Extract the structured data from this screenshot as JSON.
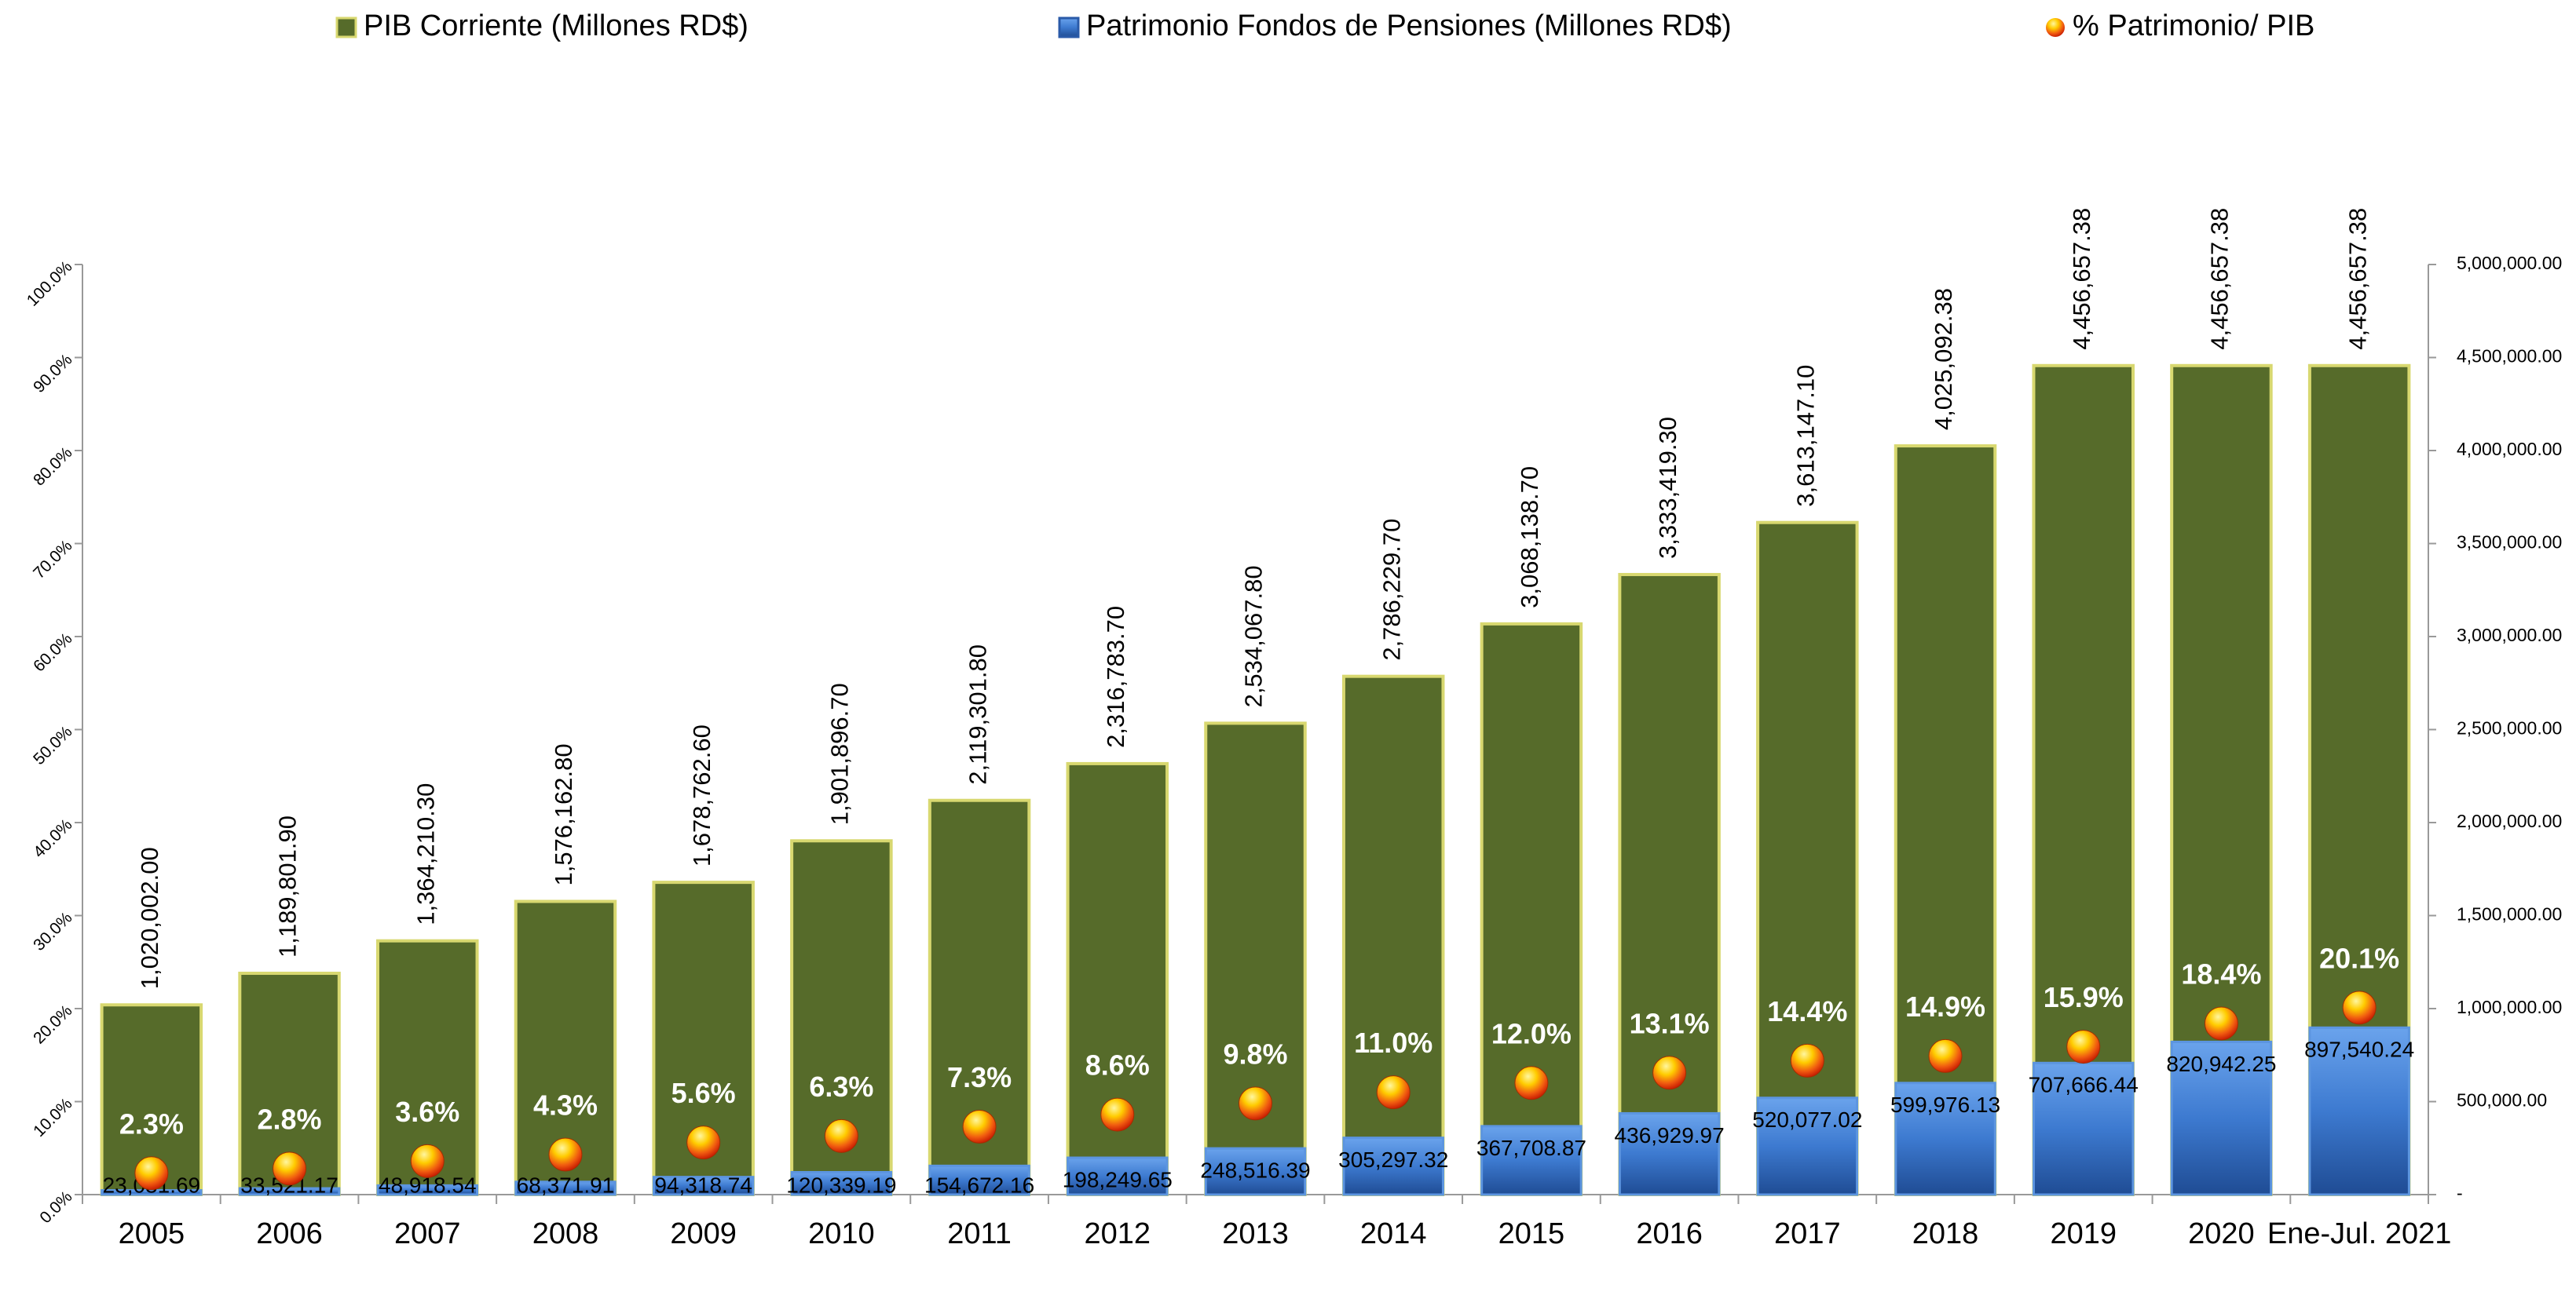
{
  "chart_data": {
    "type": "bar",
    "categories": [
      "2005",
      "2006",
      "2007",
      "2008",
      "2009",
      "2010",
      "2011",
      "2012",
      "2013",
      "2014",
      "2015",
      "2016",
      "2017",
      "2018",
      "2019",
      "2020",
      "Ene-Jul. 2021"
    ],
    "series": [
      {
        "name": "PIB Corriente (Millones RD$)",
        "type": "bar",
        "color": "#566b2a",
        "axis": "y2",
        "values": [
          1020002.0,
          1189801.9,
          1364210.3,
          1576162.8,
          1678762.6,
          1901896.7,
          2119301.8,
          2316783.7,
          2534067.8,
          2786229.7,
          3068138.7,
          3333419.3,
          3613147.1,
          4025092.38,
          4456657.38,
          4456657.38,
          4456657.38
        ],
        "value_labels": [
          "1,020,002.00",
          "1,189,801.90",
          "1,364,210.30",
          "1,576,162.80",
          "1,678,762.60",
          "1,901,896.70",
          "2,119,301.80",
          "2,316,783.70",
          "2,534,067.80",
          "2,786,229.70",
          "3,068,138.70",
          "3,333,419.30",
          "3,613,147.10",
          "4,025,092.38",
          "4,456,657.38",
          "4,456,657.38",
          "4,456,657.38"
        ]
      },
      {
        "name": "Patrimonio Fondos de Pensiones (Millones RD$)",
        "type": "bar",
        "color": "#3d7ad0",
        "axis": "y2",
        "values": [
          23031.69,
          33521.17,
          48918.54,
          68371.91,
          94318.74,
          120339.19,
          154672.16,
          198249.65,
          248516.39,
          305297.32,
          367708.87,
          436929.97,
          520077.02,
          599976.13,
          707666.44,
          820942.25,
          897540.24
        ],
        "value_labels": [
          "23,031.69",
          "33,521.17",
          "48,918.54",
          "68,371.91",
          "94,318.74",
          "120,339.19",
          "154,672.16",
          "198,249.65",
          "248,516.39",
          "305,297.32",
          "367,708.87",
          "436,929.97",
          "520,077.02",
          "599,976.13",
          "707,666.44",
          "820,942.25",
          "897,540.24"
        ]
      },
      {
        "name": "% Patrimonio/ PIB",
        "type": "scatter",
        "color": "#e8501a",
        "values": [
          2.3,
          2.8,
          3.6,
          4.3,
          5.6,
          6.3,
          7.3,
          8.6,
          9.8,
          11.0,
          12.0,
          13.1,
          14.4,
          14.9,
          15.9,
          18.4,
          20.1
        ],
        "value_labels": [
          "2.3%",
          "2.8%",
          "3.6%",
          "4.3%",
          "5.6%",
          "6.3%",
          "7.3%",
          "8.6%",
          "9.8%",
          "11.0%",
          "12.0%",
          "13.1%",
          "14.4%",
          "14.9%",
          "15.9%",
          "18.4%",
          "20.1%"
        ]
      }
    ],
    "ylim": [
      0,
      100
    ],
    "yticks": [
      {
        "value": 0,
        "label": "0.0%"
      },
      {
        "value": 10,
        "label": "10.0%"
      },
      {
        "value": 20,
        "label": "20.0%"
      },
      {
        "value": 30,
        "label": "30.0%"
      },
      {
        "value": 40,
        "label": "40.0%"
      },
      {
        "value": 50,
        "label": "50.0%"
      },
      {
        "value": 60,
        "label": "60.0%"
      },
      {
        "value": 70,
        "label": "70.0%"
      },
      {
        "value": 80,
        "label": "80.0%"
      },
      {
        "value": 90,
        "label": "90.0%"
      },
      {
        "value": 100,
        "label": "100.0%"
      }
    ],
    "y2lim": [
      0,
      5000000
    ],
    "y2ticks": [
      {
        "value": 0,
        "label": "-"
      },
      {
        "value": 500000,
        "label": "500,000.00"
      },
      {
        "value": 1000000,
        "label": "1,000,000.00"
      },
      {
        "value": 1500000,
        "label": "1,500,000.00"
      },
      {
        "value": 2000000,
        "label": "2,000,000.00"
      },
      {
        "value": 2500000,
        "label": "2,500,000.00"
      },
      {
        "value": 3000000,
        "label": "3,000,000.00"
      },
      {
        "value": 3500000,
        "label": "3,500,000.00"
      },
      {
        "value": 4000000,
        "label": "4,000,000.00"
      },
      {
        "value": 4500000,
        "label": "4,500,000.00"
      },
      {
        "value": 5000000,
        "label": "5,000,000.00"
      }
    ],
    "legend": "top"
  }
}
